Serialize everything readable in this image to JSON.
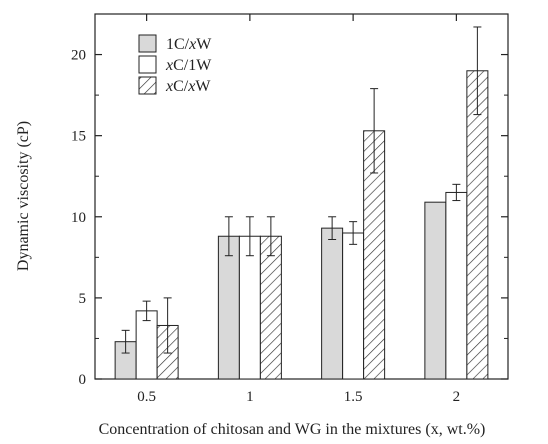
{
  "chart_data": {
    "type": "bar",
    "xlabel": "Concentration of chitosan and WG in the mixtures (x, wt.%)",
    "ylabel": "Dynamic viscosity (cP)",
    "categories": [
      "0.5",
      "1",
      "1.5",
      "2"
    ],
    "ylim": [
      0,
      22.5
    ],
    "yticks": [
      0,
      5,
      10,
      15,
      20
    ],
    "grid": false,
    "legend_position": "top-left",
    "series": [
      {
        "name": "1C/xW",
        "name_parts": [
          {
            "t": "1C/",
            "i": false
          },
          {
            "t": "x",
            "i": true
          },
          {
            "t": "W",
            "i": false
          }
        ],
        "fill": "#d9d9d9",
        "pattern": "solid",
        "values": [
          2.3,
          8.8,
          9.3,
          10.9
        ],
        "errors": [
          0.7,
          1.2,
          0.7,
          0.0
        ]
      },
      {
        "name": "xC/1W",
        "name_parts": [
          {
            "t": "x",
            "i": true
          },
          {
            "t": "C/1W",
            "i": false
          }
        ],
        "fill": "#ffffff",
        "pattern": "solid",
        "values": [
          4.2,
          8.8,
          9.0,
          11.5
        ],
        "errors": [
          0.6,
          1.2,
          0.7,
          0.5
        ]
      },
      {
        "name": "xC/xW",
        "name_parts": [
          {
            "t": "x",
            "i": true
          },
          {
            "t": "C/",
            "i": false
          },
          {
            "t": "x",
            "i": true
          },
          {
            "t": "W",
            "i": false
          }
        ],
        "fill": "#ffffff",
        "pattern": "hatch",
        "values": [
          3.3,
          8.8,
          15.3,
          19.0
        ],
        "errors": [
          1.7,
          1.2,
          2.6,
          2.7
        ]
      }
    ]
  }
}
